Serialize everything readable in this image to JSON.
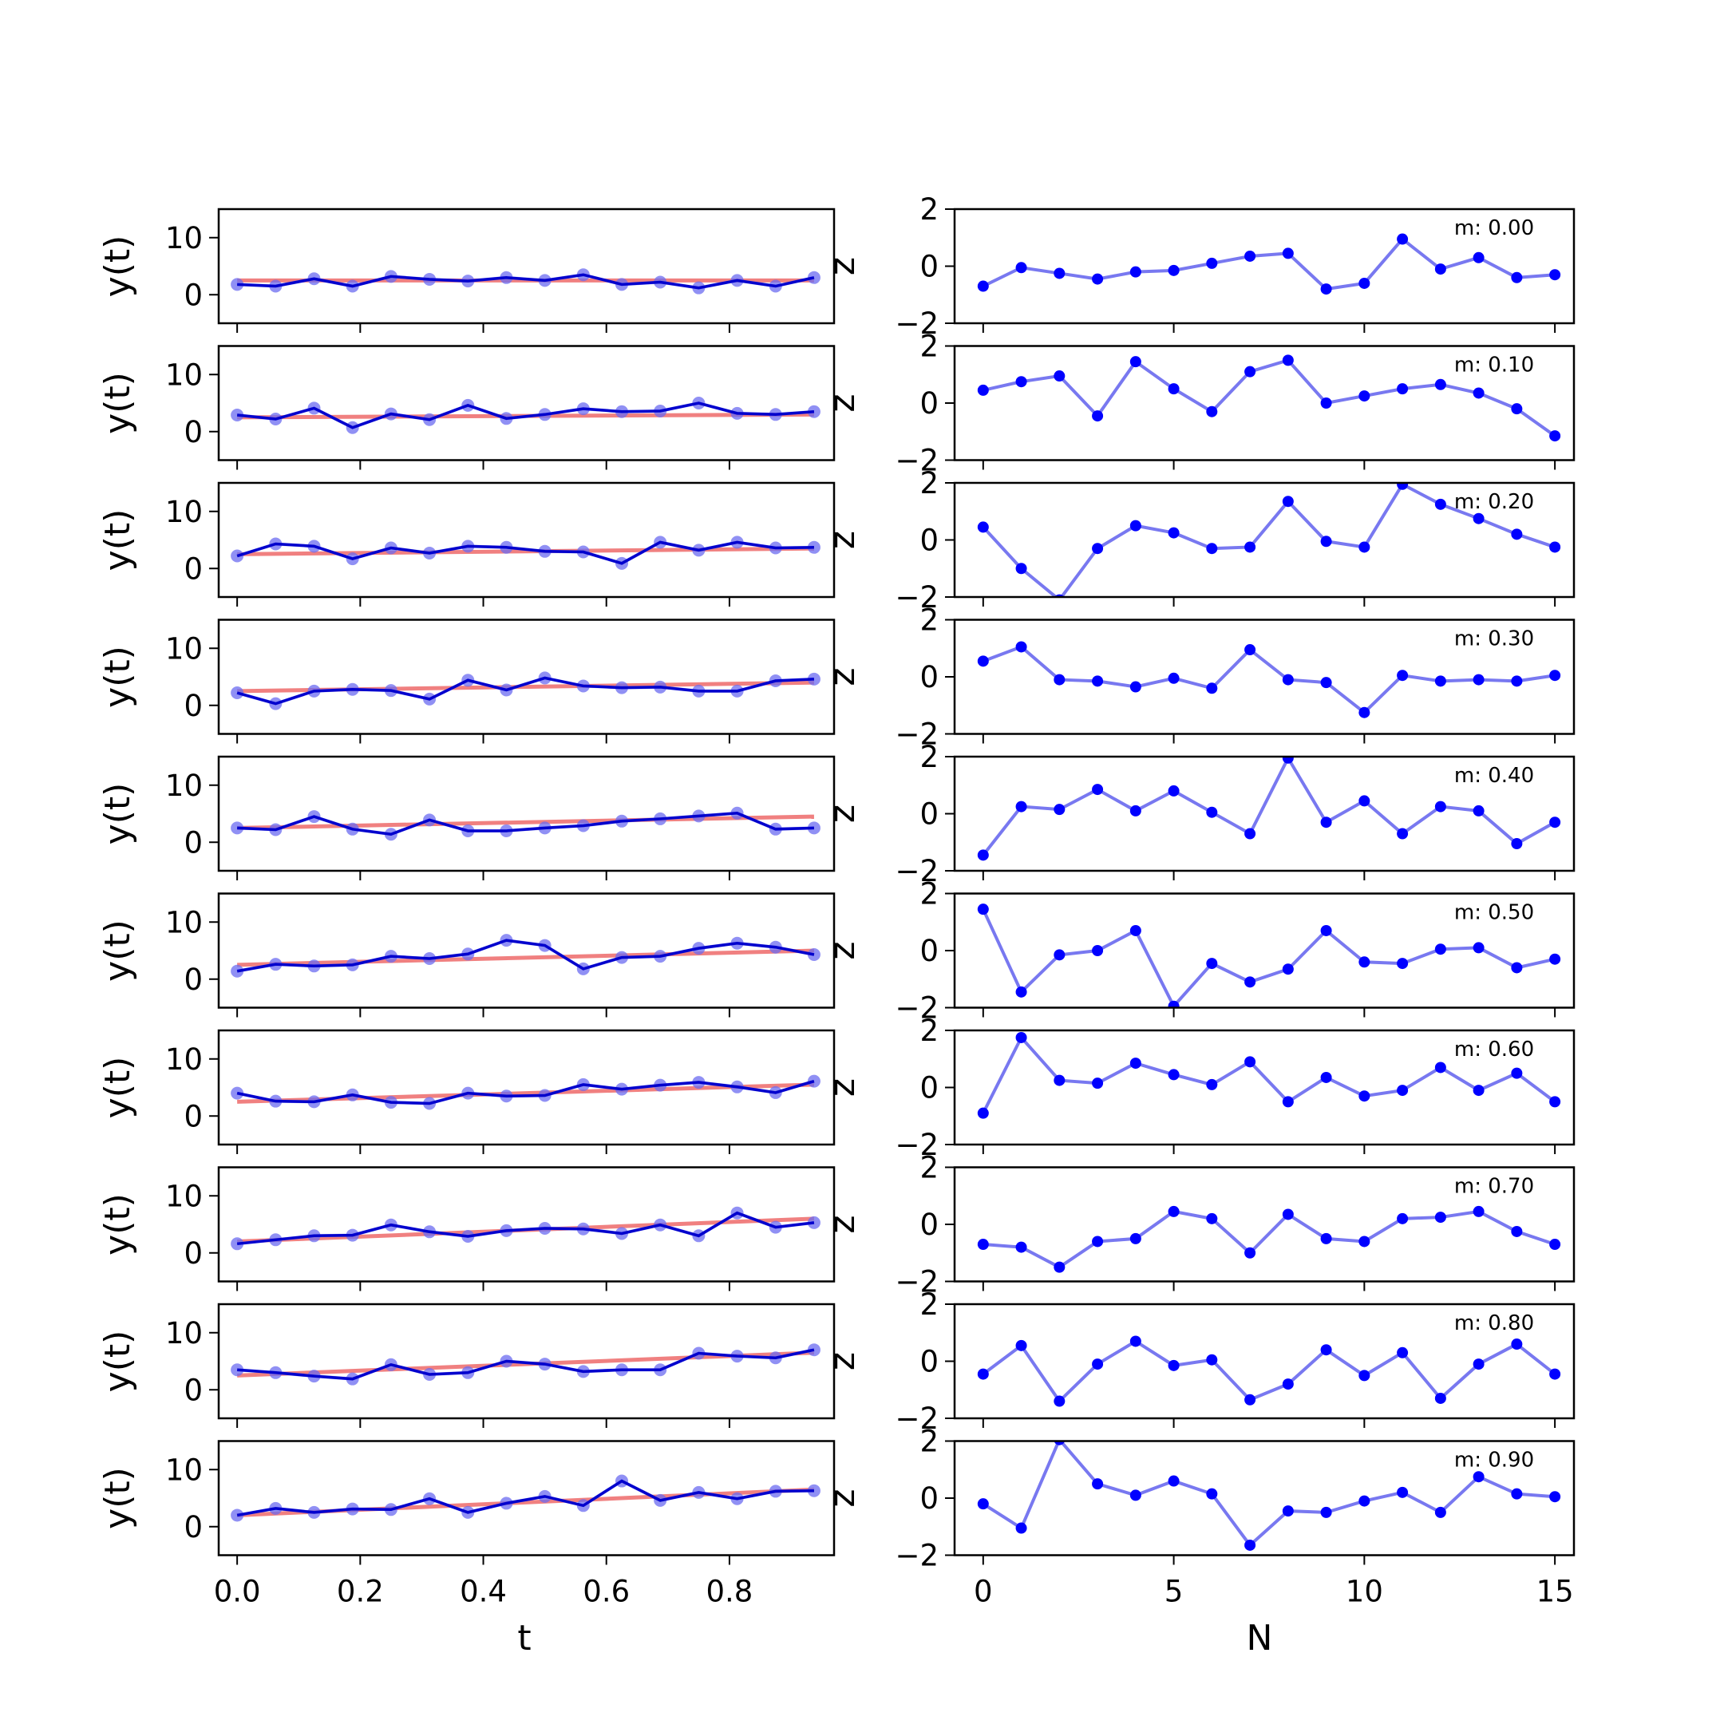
{
  "colors": {
    "fit_line": "#f08080",
    "series_line": "#0000cd",
    "series_marker": "#6b6bf0",
    "residual_line": "#7878f0",
    "residual_marker": "#0000ff"
  },
  "labels": {
    "left_ylabel": "y(t)",
    "left_xlabel": "t",
    "right_ylabel": "z",
    "right_xlabel": "N"
  },
  "chart_data": [
    {
      "type": "line",
      "panel": "left",
      "description_of_layout": "10 stacked subplots, one per m value",
      "x": [
        0.0,
        0.0625,
        0.125,
        0.1875,
        0.25,
        0.3125,
        0.375,
        0.4375,
        0.5,
        0.5625,
        0.625,
        0.6875,
        0.75,
        0.8125,
        0.875,
        0.9375
      ],
      "xlabel": "t",
      "ylabel": "y(t)",
      "xlim": [
        -0.03,
        0.97
      ],
      "ylim": [
        -5,
        15
      ],
      "xticks": [
        0.0,
        0.2,
        0.4,
        0.6,
        0.8
      ],
      "xtick_labels": [
        "0.0",
        "0.2",
        "0.4",
        "0.6",
        "0.8"
      ],
      "yticks": [
        0,
        10
      ],
      "ytick_labels": [
        "0",
        "10"
      ],
      "subplots": [
        {
          "m": 0.0,
          "fit_start": 2.5,
          "fit_end": 2.5,
          "y": [
            1.8,
            1.5,
            2.8,
            1.5,
            3.2,
            2.7,
            2.4,
            3.0,
            2.5,
            3.5,
            1.8,
            2.2,
            1.2,
            2.5,
            1.5,
            3.0
          ]
        },
        {
          "m": 0.1,
          "fit_start": 2.5,
          "fit_end": 3.0,
          "y": [
            2.9,
            2.2,
            4.1,
            0.7,
            3.1,
            2.1,
            4.6,
            2.3,
            3.0,
            4.0,
            3.5,
            3.6,
            5.0,
            3.2,
            3.0,
            3.5
          ]
        },
        {
          "m": 0.2,
          "fit_start": 2.5,
          "fit_end": 3.5,
          "y": [
            2.2,
            4.3,
            3.9,
            1.7,
            3.6,
            2.7,
            3.9,
            3.7,
            3.0,
            2.9,
            0.9,
            4.6,
            3.2,
            4.6,
            3.6,
            3.7
          ]
        },
        {
          "m": 0.3,
          "fit_start": 2.5,
          "fit_end": 4.0,
          "y": [
            2.2,
            0.3,
            2.5,
            2.8,
            2.6,
            1.1,
            4.4,
            2.7,
            4.8,
            3.4,
            3.1,
            3.2,
            2.5,
            2.5,
            4.3,
            4.6
          ]
        },
        {
          "m": 0.4,
          "fit_start": 2.5,
          "fit_end": 4.5,
          "y": [
            2.5,
            2.2,
            4.5,
            2.3,
            1.4,
            3.9,
            2.0,
            2.0,
            2.5,
            2.9,
            3.7,
            4.1,
            4.6,
            5.1,
            2.3,
            2.5
          ]
        },
        {
          "m": 0.5,
          "fit_start": 2.5,
          "fit_end": 5.0,
          "y": [
            1.4,
            2.6,
            2.3,
            2.5,
            4.0,
            3.6,
            4.4,
            6.8,
            5.9,
            1.8,
            3.8,
            4.0,
            5.4,
            6.3,
            5.6,
            4.3
          ]
        },
        {
          "m": 0.6,
          "fit_start": 2.5,
          "fit_end": 5.5,
          "y": [
            4.0,
            2.6,
            2.5,
            3.7,
            2.4,
            2.2,
            4.0,
            3.5,
            3.6,
            5.5,
            4.7,
            5.4,
            5.9,
            5.1,
            4.1,
            6.1
          ]
        },
        {
          "m": 0.7,
          "fit_start": 2.0,
          "fit_end": 6.0,
          "y": [
            1.6,
            2.3,
            3.0,
            3.1,
            4.9,
            3.7,
            2.9,
            3.9,
            4.3,
            4.2,
            3.4,
            4.9,
            3.0,
            7.0,
            4.5,
            5.3
          ]
        },
        {
          "m": 0.8,
          "fit_start": 2.5,
          "fit_end": 6.5,
          "y": [
            3.5,
            3.0,
            2.4,
            1.9,
            4.4,
            2.7,
            3.0,
            5.0,
            4.5,
            3.2,
            3.5,
            3.5,
            6.4,
            5.9,
            5.6,
            7.0
          ]
        },
        {
          "m": 0.9,
          "fit_start": 2.0,
          "fit_end": 6.5,
          "y": [
            2.0,
            3.2,
            2.5,
            3.1,
            3.0,
            4.9,
            2.5,
            4.1,
            5.3,
            3.7,
            8.0,
            4.6,
            6.0,
            4.9,
            6.2,
            6.3
          ]
        }
      ]
    },
    {
      "type": "line",
      "panel": "right",
      "x": [
        0,
        1,
        2,
        3,
        4,
        5,
        6,
        7,
        8,
        9,
        10,
        11,
        12,
        13,
        14,
        15
      ],
      "xlabel": "N",
      "ylabel": "z",
      "xlim": [
        -0.75,
        15.5
      ],
      "ylim": [
        -2,
        2
      ],
      "xticks": [
        0,
        5,
        10,
        15
      ],
      "xtick_labels": [
        "0",
        "5",
        "10",
        "15"
      ],
      "yticks": [
        -2,
        0,
        2
      ],
      "ytick_labels": [
        "−2",
        "0",
        "2"
      ],
      "subplots": [
        {
          "m_label": "m: 0.00",
          "z": [
            -0.7,
            -0.05,
            -0.25,
            -0.45,
            -0.2,
            -0.15,
            0.1,
            0.35,
            0.45,
            -0.8,
            -0.6,
            0.95,
            -0.1,
            0.3,
            -0.4,
            -0.3
          ]
        },
        {
          "m_label": "m: 0.10",
          "z": [
            0.45,
            0.75,
            0.95,
            -0.45,
            1.45,
            0.5,
            -0.3,
            1.1,
            1.5,
            0.0,
            0.25,
            0.5,
            0.65,
            0.35,
            -0.2,
            -1.15
          ]
        },
        {
          "m_label": "m: 0.20",
          "z": [
            0.45,
            -1.0,
            -2.1,
            -0.3,
            0.5,
            0.25,
            -0.3,
            -0.25,
            1.35,
            -0.05,
            -0.25,
            1.95,
            1.25,
            0.75,
            0.2,
            -0.25
          ]
        },
        {
          "m_label": "m: 0.30",
          "z": [
            0.55,
            1.05,
            -0.1,
            -0.15,
            -0.35,
            -0.05,
            -0.4,
            0.95,
            -0.1,
            -0.2,
            -1.25,
            0.05,
            -0.15,
            -0.1,
            -0.15,
            0.05
          ]
        },
        {
          "m_label": "m: 0.40",
          "z": [
            -1.45,
            0.25,
            0.15,
            0.85,
            0.1,
            0.8,
            0.05,
            -0.7,
            1.95,
            -0.3,
            0.45,
            -0.7,
            0.25,
            0.1,
            -1.05,
            -0.3
          ]
        },
        {
          "m_label": "m: 0.50",
          "z": [
            1.45,
            -1.45,
            -0.15,
            -0.0,
            0.7,
            -1.95,
            -0.45,
            -1.1,
            -0.65,
            0.7,
            -0.4,
            -0.45,
            0.05,
            0.1,
            -0.6,
            -0.3
          ]
        },
        {
          "m_label": "m: 0.60",
          "z": [
            -0.9,
            1.75,
            0.25,
            0.15,
            0.85,
            0.45,
            0.1,
            0.9,
            -0.5,
            0.35,
            -0.3,
            -0.1,
            0.7,
            -0.1,
            0.5,
            -0.5
          ]
        },
        {
          "m_label": "m: 0.70",
          "z": [
            -0.7,
            -0.8,
            -1.5,
            -0.6,
            -0.5,
            0.45,
            0.2,
            -1.0,
            0.35,
            -0.5,
            -0.6,
            0.2,
            0.25,
            0.45,
            -0.25,
            -0.7
          ]
        },
        {
          "m_label": "m: 0.80",
          "z": [
            -0.45,
            0.55,
            -1.4,
            -0.1,
            0.7,
            -0.15,
            0.05,
            -1.35,
            -0.8,
            0.4,
            -0.5,
            0.3,
            -1.3,
            -0.1,
            0.6,
            -0.45
          ]
        },
        {
          "m_label": "m: 0.90",
          "z": [
            -0.2,
            -1.05,
            2.05,
            0.5,
            0.1,
            0.6,
            0.15,
            -1.65,
            -0.45,
            -0.5,
            -0.1,
            0.2,
            -0.5,
            0.75,
            0.15,
            0.05
          ]
        }
      ]
    }
  ]
}
